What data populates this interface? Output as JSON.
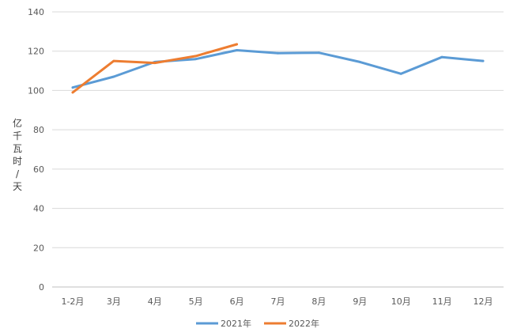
{
  "chart_data": {
    "type": "line",
    "categories": [
      "1-2月",
      "3月",
      "4月",
      "5月",
      "6月",
      "7月",
      "8月",
      "9月",
      "10月",
      "11月",
      "12月"
    ],
    "series": [
      {
        "name": "2021年",
        "color": "#5B9BD5",
        "values": [
          101.5,
          107,
          114.5,
          116,
          120.5,
          119,
          119.2,
          114.5,
          108.5,
          117,
          115
        ]
      },
      {
        "name": "2022年",
        "color": "#ED7D31",
        "values": [
          99,
          115,
          114,
          117.5,
          123.5,
          null,
          null,
          null,
          null,
          null,
          null
        ]
      }
    ],
    "ylabel": "亿千瓦时/天",
    "ylim": [
      0,
      140
    ],
    "yticks": [
      0,
      20,
      40,
      60,
      80,
      100,
      120,
      140
    ],
    "grid": true,
    "legend": "bottom"
  }
}
